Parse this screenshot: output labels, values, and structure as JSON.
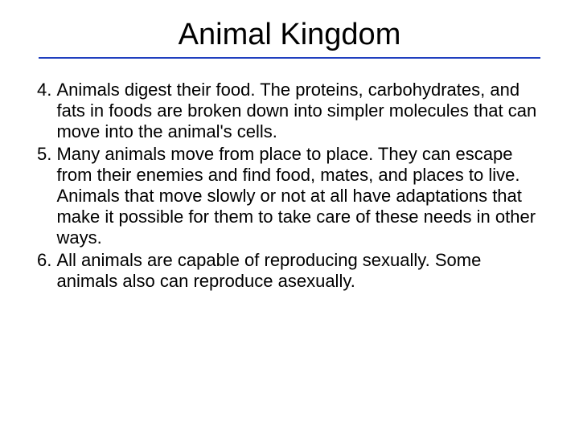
{
  "slide": {
    "title": "Animal Kingdom",
    "title_color": "#000000",
    "title_fontsize": 38,
    "underline_color": "#1f3fbf",
    "body_fontsize": 22,
    "background_color": "#ffffff",
    "items": [
      {
        "number": "4. ",
        "text": "Animals digest their food.  The proteins, carbohydrates, and fats in foods are broken down into simpler molecules that can move into the animal's cells."
      },
      {
        "number": "5. ",
        "text": "Many animals move from place to place.  They can escape from their enemies and find food, mates, and places to live.  Animals that move slowly or not at all have adaptations that make it possible for them to take care of these needs in other ways."
      },
      {
        "number": "6. ",
        "text": "All animals are capable of reproducing sexually.  Some animals also can reproduce asexually."
      }
    ]
  }
}
